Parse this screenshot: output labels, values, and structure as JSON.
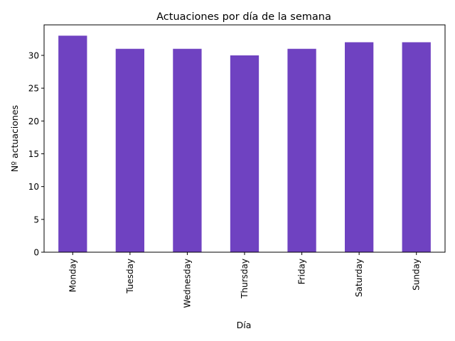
{
  "chart_data": {
    "type": "bar",
    "title": "Actuaciones por día de la semana",
    "xlabel": "Día",
    "ylabel": "Nº actuaciones",
    "categories": [
      "Monday",
      "Tuesday",
      "Wednesday",
      "Thursday",
      "Friday",
      "Saturday",
      "Sunday"
    ],
    "values": [
      33,
      31,
      31,
      30,
      31,
      32,
      32
    ],
    "ylim": [
      0,
      34.65
    ],
    "yticks": [
      0,
      5,
      10,
      15,
      20,
      25,
      30
    ],
    "bar_color": "#6f42c1",
    "grid": false,
    "legend": "none"
  }
}
